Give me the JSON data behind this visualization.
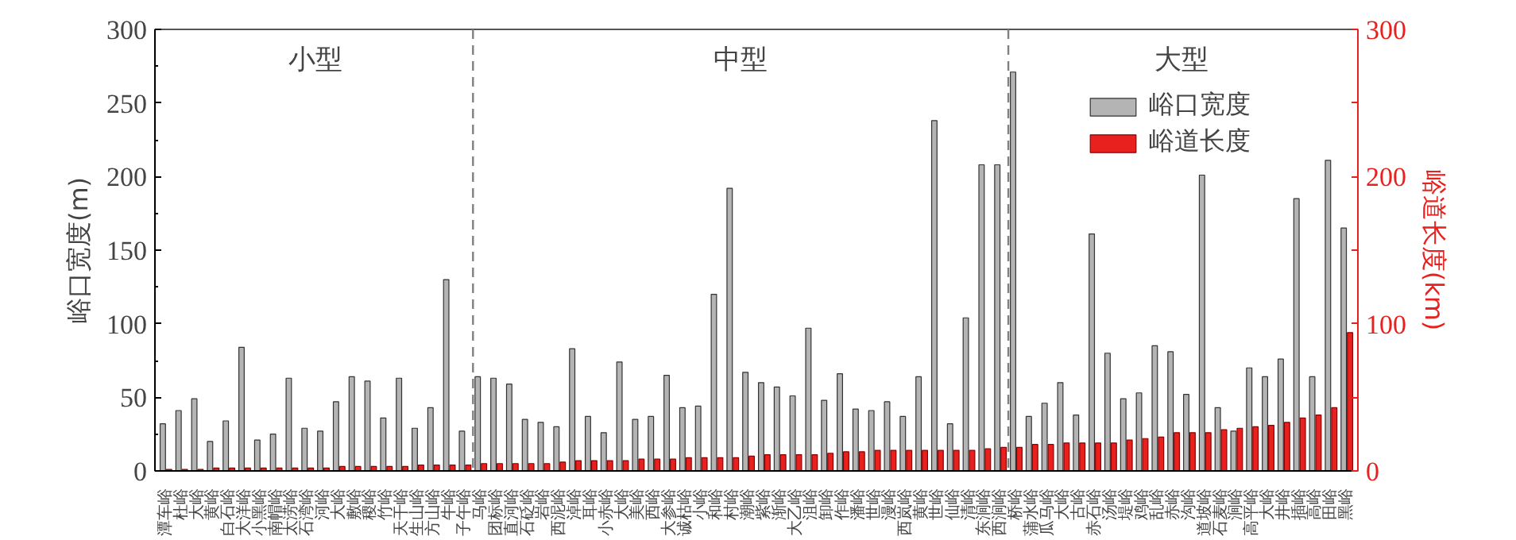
{
  "chart_data": {
    "type": "bar",
    "ylabel": "峪口宽度(m)",
    "y2label": "峪道长度(km)",
    "categories": [
      "潭车峪",
      "杜峪",
      "大峪",
      "黄峪",
      "白石峪",
      "大洋峪",
      "小黑峪",
      "南帽峪",
      "太涝峪",
      "石湾峪",
      "河峪",
      "大峪",
      "敷峪",
      "稷峪",
      "竹峪",
      "天干峪",
      "生山峪",
      "方山峪",
      "牛峪",
      "子午峪",
      "马峪",
      "团标峪",
      "直河峪",
      "石砭峪",
      "岩峪",
      "西泥峪",
      "淖峪",
      "耳峪",
      "小赤峪",
      "大峪",
      "美峪",
      "西峪",
      "大参峪",
      "诚枯峪",
      "小峪",
      "和峪",
      "村峪",
      "潮峪",
      "紫峪",
      "渐峪",
      "大乙峪",
      "沮峪",
      "卸峪",
      "作峪",
      "潘峪",
      "世峪",
      "漫峪",
      "西岚峪",
      "黄峪",
      "世峪",
      "仙峪",
      "清峪",
      "东涧峪",
      "西涧峪",
      "桥峪",
      "蒲水峪",
      "瓜马峪",
      "大峪",
      "古峪",
      "赤石峪",
      "汤峪",
      "堤峪",
      "鸡峪",
      "乱峪",
      "赤峪",
      "沟峪",
      "道坡峪",
      "石麦峪",
      "涧峪",
      "高平峪",
      "大峪",
      "井峪",
      "插峪",
      "高峪",
      "田峪",
      "黑峪"
    ],
    "series": [
      {
        "name": "峪口宽度",
        "color": "#b4b4b4",
        "values": [
          32,
          41,
          49,
          20,
          34,
          84,
          21,
          25,
          63,
          29,
          27,
          47,
          64,
          61,
          36,
          63,
          29,
          43,
          130,
          27,
          64,
          63,
          59,
          35,
          33,
          30,
          83,
          37,
          26,
          74,
          35,
          37,
          65,
          43,
          44,
          120,
          192,
          67,
          60,
          57,
          51,
          97,
          48,
          66,
          42,
          41,
          47,
          37,
          64,
          238,
          32,
          104,
          208,
          208,
          271,
          37,
          46,
          60,
          38,
          161,
          80,
          49,
          53,
          85,
          81,
          52,
          201,
          43,
          27,
          70,
          64,
          76,
          185,
          64,
          211,
          165
        ]
      },
      {
        "name": "峪道长度",
        "color": "#e8201e",
        "axis": "y2",
        "values": [
          1,
          1,
          1,
          2,
          2,
          2,
          2,
          2,
          2,
          2,
          2,
          3,
          3,
          3,
          3,
          3,
          4,
          4,
          4,
          4,
          5,
          5,
          5,
          5,
          5,
          6,
          7,
          7,
          7,
          7,
          8,
          8,
          8,
          9,
          9,
          9,
          9,
          10,
          11,
          11,
          11,
          11,
          12,
          13,
          13,
          14,
          14,
          14,
          14,
          14,
          14,
          14,
          15,
          16,
          16,
          18,
          18,
          19,
          19,
          19,
          19,
          21,
          22,
          23,
          26,
          26,
          26,
          28,
          29,
          30,
          31,
          33,
          36,
          38,
          43,
          94
        ]
      }
    ],
    "ylim": [
      0,
      300
    ],
    "yticks": [
      0,
      50,
      100,
      150,
      200,
      250,
      300
    ],
    "y2lim": [
      0,
      300
    ],
    "y2ticks": [
      0,
      {
        "value": 50,
        "label": null
      },
      100,
      {
        "value": 150,
        "label": null
      },
      200,
      {
        "value": 250,
        "label": null
      },
      300
    ],
    "annotations": [
      "小型",
      "中型",
      "大型"
    ],
    "legend": "top right",
    "grid": false
  }
}
